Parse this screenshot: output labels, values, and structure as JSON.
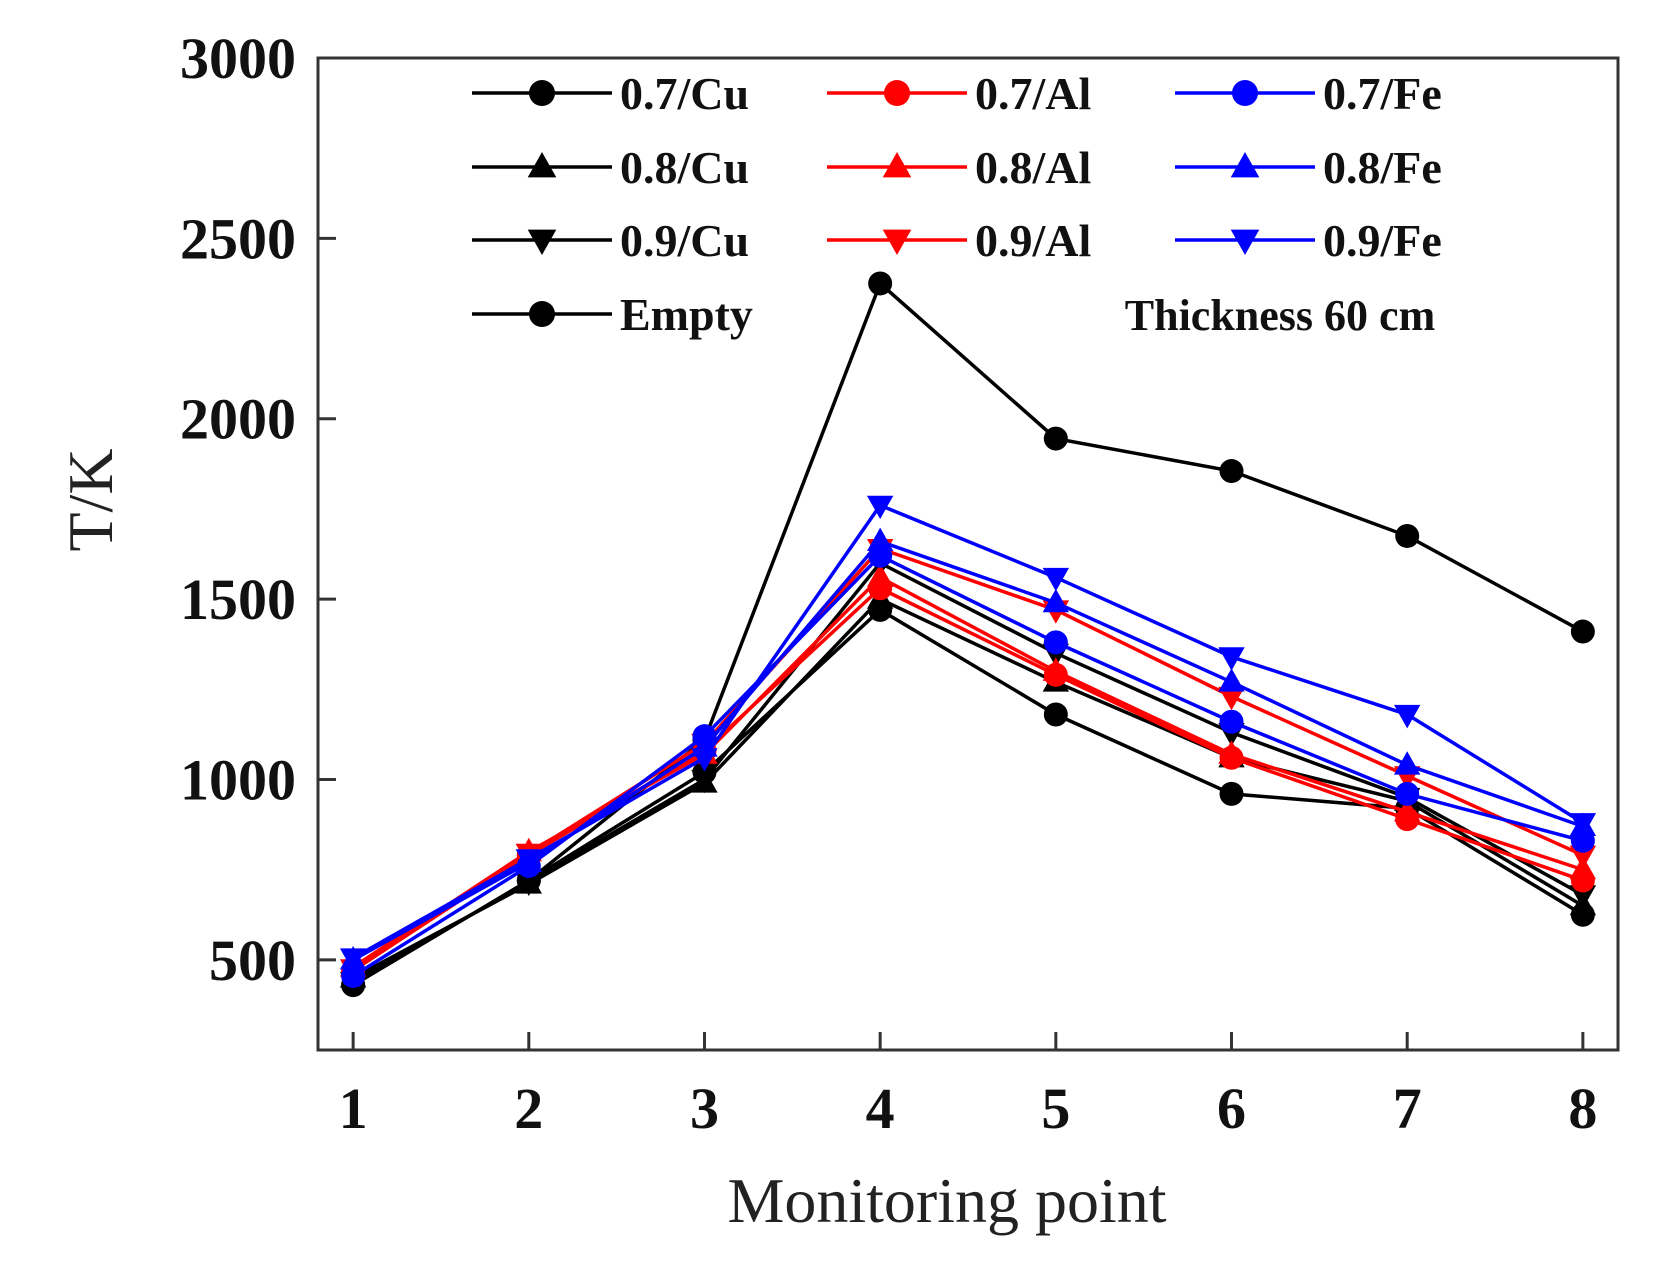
{
  "chart_data": {
    "type": "line",
    "title": "",
    "xlabel": "Monitoring point",
    "ylabel": "T/K",
    "annotation": "Thickness 60 cm",
    "x": [
      1,
      2,
      3,
      4,
      5,
      6,
      7,
      8
    ],
    "xlim": [
      0.8,
      8.2
    ],
    "ylim": [
      250,
      3000
    ],
    "yticks": [
      500,
      1000,
      1500,
      2000,
      2500,
      3000
    ],
    "grid": false,
    "legend_position": "top",
    "colors": {
      "black": "#000000",
      "red": "#ff0000",
      "blue": "#0000ff"
    },
    "series": [
      {
        "name": "Empty",
        "color": "#000000",
        "marker": "circle",
        "values": [
          430,
          720,
          1110,
          2375,
          1945,
          1855,
          1675,
          1410
        ]
      },
      {
        "name": "0.7/Cu",
        "color": "#000000",
        "marker": "circle",
        "values": [
          430,
          720,
          1020,
          1470,
          1180,
          960,
          920,
          625
        ]
      },
      {
        "name": "0.8/Cu",
        "color": "#000000",
        "marker": "triangle-up",
        "values": [
          450,
          710,
          990,
          1500,
          1270,
          1060,
          940,
          650
        ]
      },
      {
        "name": "0.9/Cu",
        "color": "#000000",
        "marker": "triangle-down",
        "values": [
          440,
          715,
          1000,
          1600,
          1350,
          1130,
          950,
          680
        ]
      },
      {
        "name": "0.7/Al",
        "color": "#ff0000",
        "marker": "circle",
        "values": [
          470,
          790,
          1080,
          1530,
          1290,
          1060,
          890,
          720
        ]
      },
      {
        "name": "0.8/Al",
        "color": "#ff0000",
        "marker": "triangle-up",
        "values": [
          480,
          800,
          1070,
          1560,
          1300,
          1070,
          910,
          750
        ]
      },
      {
        "name": "0.9/Al",
        "color": "#ff0000",
        "marker": "triangle-down",
        "values": [
          475,
          795,
          1100,
          1640,
          1470,
          1230,
          1010,
          790
        ]
      },
      {
        "name": "0.7/Fe",
        "color": "#0000ff",
        "marker": "circle",
        "values": [
          455,
          760,
          1120,
          1620,
          1380,
          1160,
          960,
          830
        ]
      },
      {
        "name": "0.8/Fe",
        "color": "#0000ff",
        "marker": "triangle-up",
        "values": [
          500,
          770,
          1090,
          1660,
          1490,
          1270,
          1040,
          870
        ]
      },
      {
        "name": "0.9/Fe",
        "color": "#0000ff",
        "marker": "triangle-down",
        "values": [
          505,
          780,
          1060,
          1760,
          1560,
          1340,
          1180,
          880
        ]
      }
    ],
    "legend_order": [
      "0.7/Cu",
      "0.7/Al",
      "0.7/Fe",
      "0.8/Cu",
      "0.8/Al",
      "0.8/Fe",
      "0.9/Cu",
      "0.9/Al",
      "0.9/Fe",
      "Empty"
    ]
  }
}
